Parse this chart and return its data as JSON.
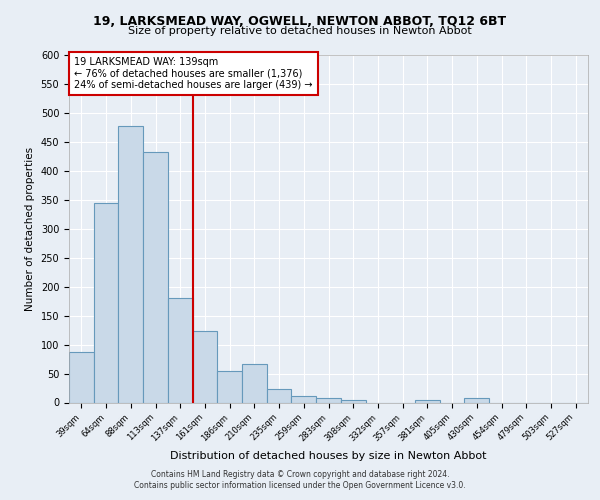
{
  "title": "19, LARKSMEAD WAY, OGWELL, NEWTON ABBOT, TQ12 6BT",
  "subtitle": "Size of property relative to detached houses in Newton Abbot",
  "xlabel": "Distribution of detached houses by size in Newton Abbot",
  "ylabel": "Number of detached properties",
  "bar_labels": [
    "39sqm",
    "64sqm",
    "88sqm",
    "113sqm",
    "137sqm",
    "161sqm",
    "186sqm",
    "210sqm",
    "235sqm",
    "259sqm",
    "283sqm",
    "308sqm",
    "332sqm",
    "357sqm",
    "381sqm",
    "405sqm",
    "430sqm",
    "454sqm",
    "479sqm",
    "503sqm",
    "527sqm"
  ],
  "bar_heights": [
    88,
    345,
    478,
    433,
    181,
    124,
    55,
    67,
    24,
    12,
    7,
    5,
    0,
    0,
    5,
    0,
    7,
    0,
    0,
    0,
    0
  ],
  "bar_color": "#c9d9e8",
  "bar_edge_color": "#6699bb",
  "bar_edge_width": 0.8,
  "vline_x_index": 4,
  "vline_color": "#cc0000",
  "annotation_text": "19 LARKSMEAD WAY: 139sqm\n← 76% of detached houses are smaller (1,376)\n24% of semi-detached houses are larger (439) →",
  "annotation_box_color": "#ffffff",
  "annotation_box_edge_color": "#cc0000",
  "background_color": "#e8eef5",
  "grid_color": "#ffffff",
  "ylim": [
    0,
    600
  ],
  "yticks": [
    0,
    50,
    100,
    150,
    200,
    250,
    300,
    350,
    400,
    450,
    500,
    550,
    600
  ],
  "footer_line1": "Contains HM Land Registry data © Crown copyright and database right 2024.",
  "footer_line2": "Contains public sector information licensed under the Open Government Licence v3.0."
}
